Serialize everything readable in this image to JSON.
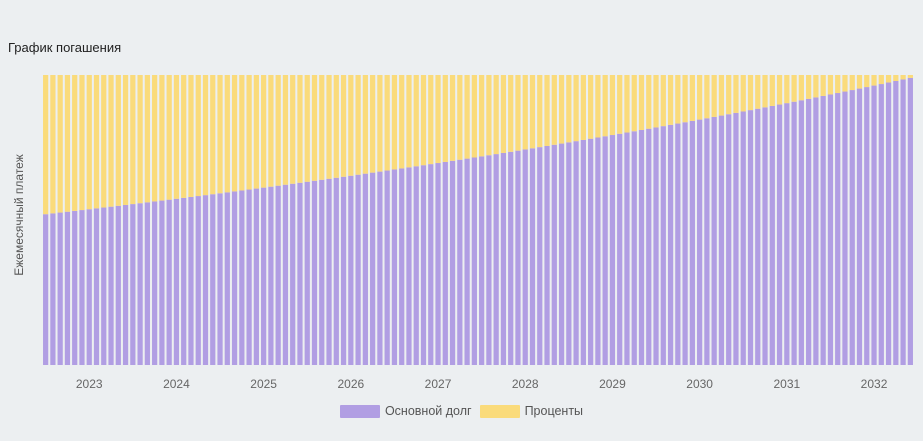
{
  "title": "График погашения",
  "chart_data": {
    "type": "bar",
    "stacked": true,
    "title": "График погашения",
    "xlabel": "",
    "ylabel": "Ежемесячный платеж",
    "x_ticks": [
      "2023",
      "2024",
      "2025",
      "2026",
      "2027",
      "2028",
      "2029",
      "2030",
      "2031",
      "2032"
    ],
    "period": {
      "start": "2022-07",
      "end": "2032-06",
      "months": 120
    },
    "ylim": [
      0,
      1
    ],
    "series": [
      {
        "name": "Основной долг",
        "color": "#B19EE3",
        "first_value": 0.52,
        "last_value": 0.99
      },
      {
        "name": "Проценты",
        "color": "#FADB7B",
        "first_value": 0.48,
        "last_value": 0.01
      }
    ],
    "total_per_month": 1.0,
    "grid": false,
    "legend_position": "bottom"
  }
}
